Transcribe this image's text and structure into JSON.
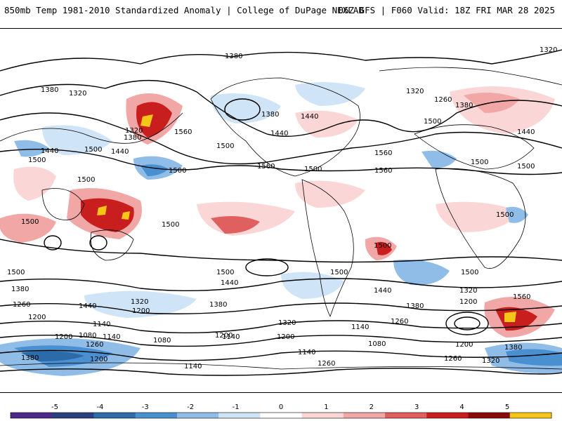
{
  "header": {
    "left_title": "850mb Temp 1981-2010 Standardized Anomaly | College of DuPage NEXLAB",
    "right_title": "06Z GFS | F060 Valid: 18Z FRI MAR 28 2025"
  },
  "map": {
    "contour_labels": [
      "1380",
      "1320",
      "1380",
      "1320",
      "1320",
      "1260",
      "1380",
      "1440",
      "1500",
      "1440",
      "1560",
      "1380",
      "1440",
      "1500",
      "1440",
      "1380",
      "1320",
      "1440",
      "1500",
      "1500",
      "1560",
      "1500",
      "1500",
      "1500",
      "1500",
      "1560",
      "1500",
      "1500",
      "1500",
      "1500",
      "1560",
      "1500",
      "1500",
      "1500",
      "1500",
      "1500",
      "1440",
      "1440",
      "1560",
      "1380",
      "1320",
      "1200",
      "1380",
      "1440",
      "1320",
      "1200",
      "1260",
      "1200",
      "1140",
      "1080",
      "1140",
      "1200",
      "1260",
      "1320",
      "1380",
      "1200",
      "1260",
      "1080",
      "1140",
      "1140",
      "1200",
      "1140",
      "1080",
      "1200",
      "1260",
      "1320",
      "1380",
      "1380",
      "1200",
      "1140",
      "1260"
    ]
  },
  "colorbar": {
    "ticks": [
      "-5",
      "-4",
      "-3",
      "-2",
      "-1",
      "0",
      "1",
      "2",
      "3",
      "4",
      "5"
    ],
    "colors": [
      "#4b2a8a",
      "#2a3f7d",
      "#2d6aa8",
      "#4a8fd0",
      "#8fbde8",
      "#cfe4f6",
      "#ffffff",
      "#fbd6d6",
      "#f2a7a7",
      "#e06060",
      "#c81e1e",
      "#8a0a0a",
      "#f5c518"
    ]
  }
}
